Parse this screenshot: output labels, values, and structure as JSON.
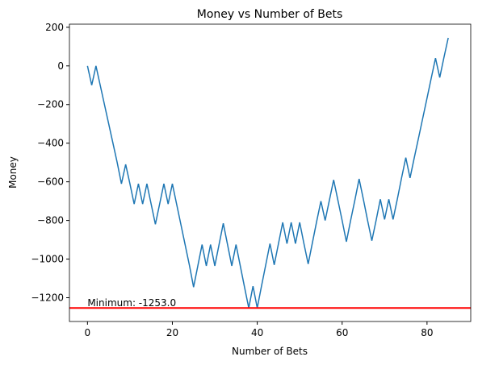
{
  "chart_data": {
    "type": "line",
    "title": "Money vs Number of Bets",
    "xlabel": "Number of Bets",
    "ylabel": "Money",
    "x": [
      0,
      1,
      2,
      3,
      4,
      5,
      6,
      7,
      8,
      9,
      10,
      11,
      12,
      13,
      14,
      15,
      16,
      17,
      18,
      19,
      20,
      21,
      22,
      23,
      24,
      25,
      26,
      27,
      28,
      29,
      30,
      31,
      32,
      33,
      34,
      35,
      36,
      37,
      38,
      39,
      40,
      41,
      42,
      43,
      44,
      45,
      46,
      47,
      48,
      49,
      50,
      51,
      52,
      53,
      54,
      55,
      56,
      57,
      58,
      59,
      60,
      61,
      62,
      63,
      64,
      65,
      66,
      67,
      68,
      69,
      70,
      71,
      72,
      73,
      74,
      75,
      76,
      77,
      78,
      79,
      80,
      81,
      82,
      83,
      84,
      85
    ],
    "series": [
      {
        "name": "Money",
        "color": "#1f77b4",
        "values": [
          0,
          -100,
          0,
          -100,
          -200,
          -300,
          -400,
          -500,
          -610,
          -510,
          -610,
          -715,
          -610,
          -715,
          -610,
          -715,
          -820,
          -715,
          -610,
          -715,
          -610,
          -715,
          -820,
          -925,
          -1030,
          -1145,
          -1035,
          -925,
          -1035,
          -925,
          -1035,
          -925,
          -815,
          -925,
          -1035,
          -925,
          -1035,
          -1145,
          -1253,
          -1140,
          -1253,
          -1140,
          -1030,
          -920,
          -1030,
          -920,
          -810,
          -920,
          -810,
          -920,
          -810,
          -920,
          -1025,
          -915,
          -805,
          -700,
          -800,
          -695,
          -590,
          -695,
          -800,
          -910,
          -800,
          -695,
          -585,
          -690,
          -800,
          -905,
          -800,
          -690,
          -795,
          -690,
          -795,
          -690,
          -580,
          -475,
          -580,
          -475,
          -373,
          -270,
          -167,
          -63,
          40,
          -60,
          45,
          145
        ]
      }
    ],
    "hline": {
      "value": -1253,
      "color": "#ff0000"
    },
    "annotation": {
      "text": "Minimum: -1253.0",
      "x": 0,
      "y": -1253
    },
    "xlim": [
      -4.25,
      90.3
    ],
    "ylim": [
      -1323,
      216
    ],
    "xticks": [
      0,
      20,
      40,
      60,
      80
    ],
    "yticks": [
      {
        "value": -1200,
        "label": "−1200"
      },
      {
        "value": -1000,
        "label": "−1000"
      },
      {
        "value": -800,
        "label": "−800"
      },
      {
        "value": -600,
        "label": "−600"
      },
      {
        "value": -400,
        "label": "−400"
      },
      {
        "value": -200,
        "label": "−200"
      },
      0,
      200
    ]
  }
}
